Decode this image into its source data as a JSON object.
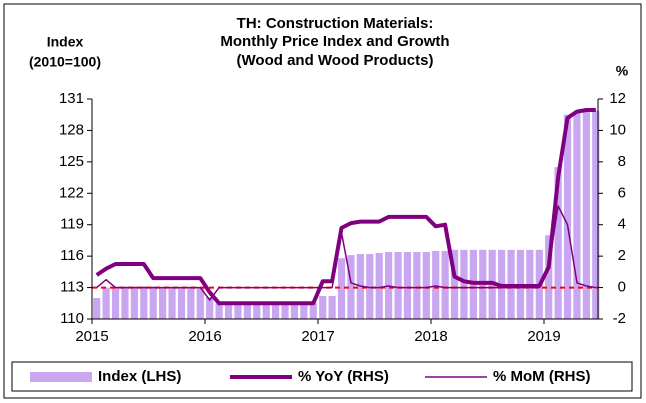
{
  "chart_data": {
    "type": "bar-line",
    "title": [
      "TH: Construction Materials:",
      "Monthly Price Index and Growth",
      "(Wood and Wood Products)"
    ],
    "ylabel": [
      "Index",
      "(2010=100)"
    ],
    "y2label": "%",
    "categories": [
      "2015",
      null,
      null,
      null,
      null,
      null,
      null,
      null,
      null,
      null,
      null,
      null,
      "2016",
      null,
      null,
      null,
      null,
      null,
      null,
      null,
      null,
      null,
      null,
      null,
      "2017",
      null,
      null,
      null,
      null,
      null,
      null,
      null,
      null,
      null,
      null,
      null,
      "2018",
      null,
      null,
      null,
      null,
      null,
      null,
      null,
      null,
      null,
      null,
      null,
      "2019",
      null,
      null,
      null,
      null,
      null
    ],
    "series": [
      {
        "name": "Index (LHS)",
        "type": "bar",
        "color": "#c9a6f0",
        "values": [
          112.0,
          113.0,
          113.1,
          113.1,
          113.1,
          113.1,
          113.1,
          113.0,
          113.0,
          113.0,
          113.0,
          113.0,
          112.1,
          111.5,
          111.5,
          111.5,
          111.5,
          111.5,
          111.5,
          111.5,
          111.5,
          111.5,
          111.5,
          111.5,
          112.2,
          112.2,
          115.8,
          116.1,
          116.2,
          116.2,
          116.3,
          116.4,
          116.4,
          116.4,
          116.4,
          116.4,
          116.5,
          116.5,
          116.6,
          116.6,
          116.6,
          116.6,
          116.6,
          116.6,
          116.6,
          116.6,
          116.6,
          116.6,
          118.0,
          124.5,
          129.5,
          129.8,
          129.9,
          129.9
        ]
      },
      {
        "name": "% YoY (RHS)",
        "type": "line",
        "axis": "y2",
        "color": "#800080",
        "width": 4,
        "values": [
          0.8,
          1.2,
          1.5,
          1.5,
          1.5,
          1.5,
          0.6,
          0.6,
          0.6,
          0.6,
          0.6,
          0.6,
          -0.3,
          -1.0,
          -1.0,
          -1.0,
          -1.0,
          -1.0,
          -1.0,
          -1.0,
          -1.0,
          -1.0,
          -1.0,
          -1.0,
          0.4,
          0.4,
          3.8,
          4.1,
          4.2,
          4.2,
          4.2,
          4.5,
          4.5,
          4.5,
          4.5,
          4.5,
          3.9,
          4.0,
          0.7,
          0.4,
          0.3,
          0.3,
          0.3,
          0.1,
          0.1,
          0.1,
          0.1,
          0.1,
          1.3,
          7.0,
          10.8,
          11.2,
          11.3,
          11.3
        ]
      },
      {
        "name": "% MoM (RHS)",
        "type": "line",
        "axis": "y2",
        "color": "#800080",
        "width": 1.5,
        "values": [
          0,
          0.5,
          0,
          0,
          0,
          0,
          0,
          0,
          0,
          0,
          0,
          0,
          -0.8,
          0,
          0,
          0,
          0,
          0,
          0,
          0,
          0,
          0,
          0,
          0,
          0,
          0,
          3.5,
          0.3,
          0.1,
          0,
          0,
          0.1,
          0,
          0,
          0,
          0,
          0.1,
          0,
          0,
          0,
          0,
          0,
          0,
          0,
          0,
          0,
          0,
          0,
          1.3,
          5.2,
          4.0,
          0.3,
          0.1,
          0
        ]
      }
    ],
    "ylim": [
      110,
      131
    ],
    "yticks": [
      110,
      113,
      116,
      119,
      122,
      125,
      128,
      131
    ],
    "y2lim": [
      -2,
      12
    ],
    "y2ticks": [
      -2,
      0,
      2,
      4,
      6,
      8,
      10,
      12
    ],
    "reference_line": {
      "axis": "y2",
      "value": 0,
      "color": "#ff0000"
    },
    "legend": "bottom"
  }
}
